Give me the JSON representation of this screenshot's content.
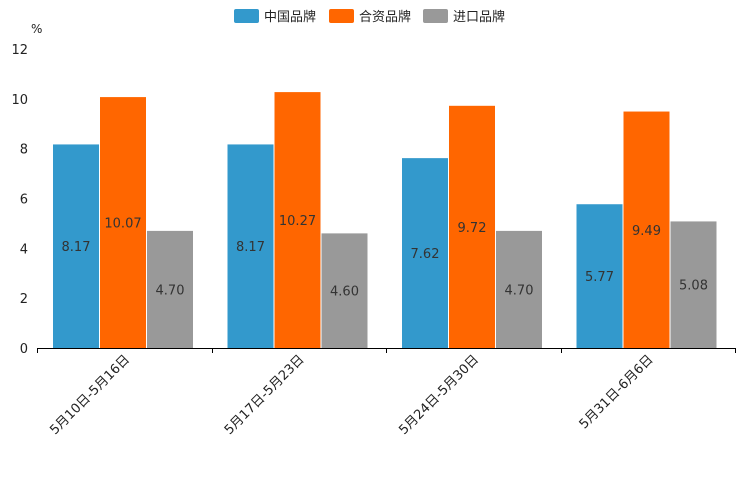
{
  "chart_data": {
    "type": "bar",
    "title": "",
    "xlabel": "",
    "ylabel": "%",
    "ylim": [
      0,
      12
    ],
    "yticks": [
      0,
      2,
      4,
      6,
      8,
      10,
      12
    ],
    "legend_position": "top-center",
    "grid": false,
    "categories": [
      "5月10日-5月16日",
      "5月17日-5月23日",
      "5月24日-5月30日",
      "5月31日-6月6日"
    ],
    "series": [
      {
        "name": "中国品牌",
        "color": "#3399cc",
        "values": [
          8.17,
          8.17,
          7.62,
          5.77
        ],
        "labels": [
          "8.17",
          "8.17",
          "7.62",
          "5.77"
        ]
      },
      {
        "name": "合资品牌",
        "color": "#ff6600",
        "values": [
          10.07,
          10.27,
          9.72,
          9.49
        ],
        "labels": [
          "10.07",
          "10.27",
          "9.72",
          "9.49"
        ]
      },
      {
        "name": "进口品牌",
        "color": "#999999",
        "values": [
          4.7,
          4.6,
          4.7,
          5.08
        ],
        "labels": [
          "4.70",
          "4.60",
          "4.70",
          "5.08"
        ]
      }
    ]
  }
}
